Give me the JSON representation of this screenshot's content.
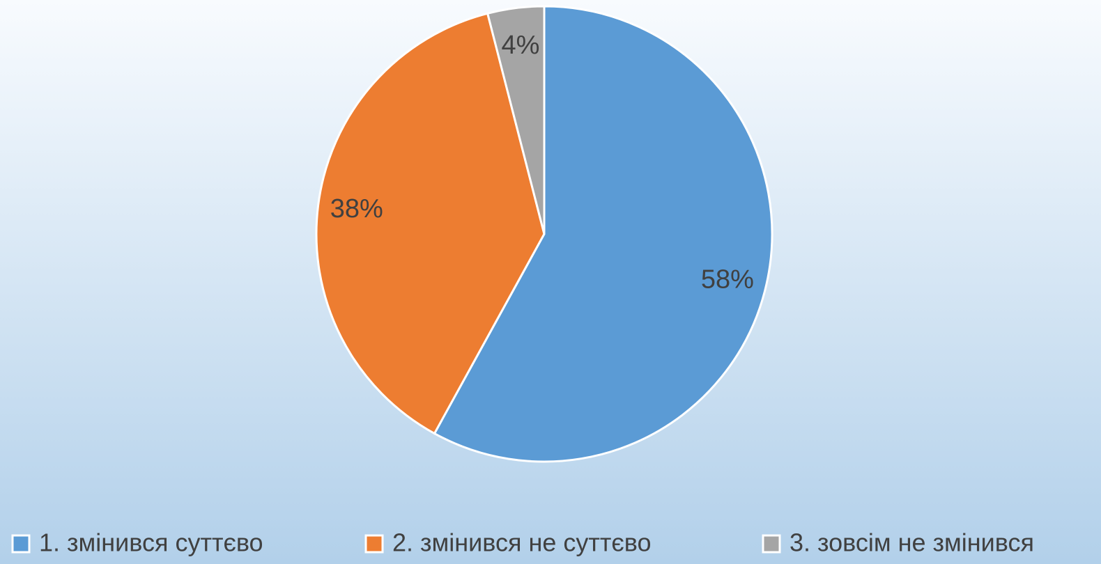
{
  "chart_data": {
    "type": "pie",
    "categories": [
      "1. змінився суттєво",
      "2. змінився не суттєво",
      "3. зовсім не змінився"
    ],
    "values": [
      58,
      38,
      4
    ],
    "value_labels": [
      "58%",
      "38%",
      "4%"
    ],
    "colors": [
      "#5b9bd5",
      "#ed7d31",
      "#a5a5a5"
    ],
    "legend": "bottom"
  }
}
